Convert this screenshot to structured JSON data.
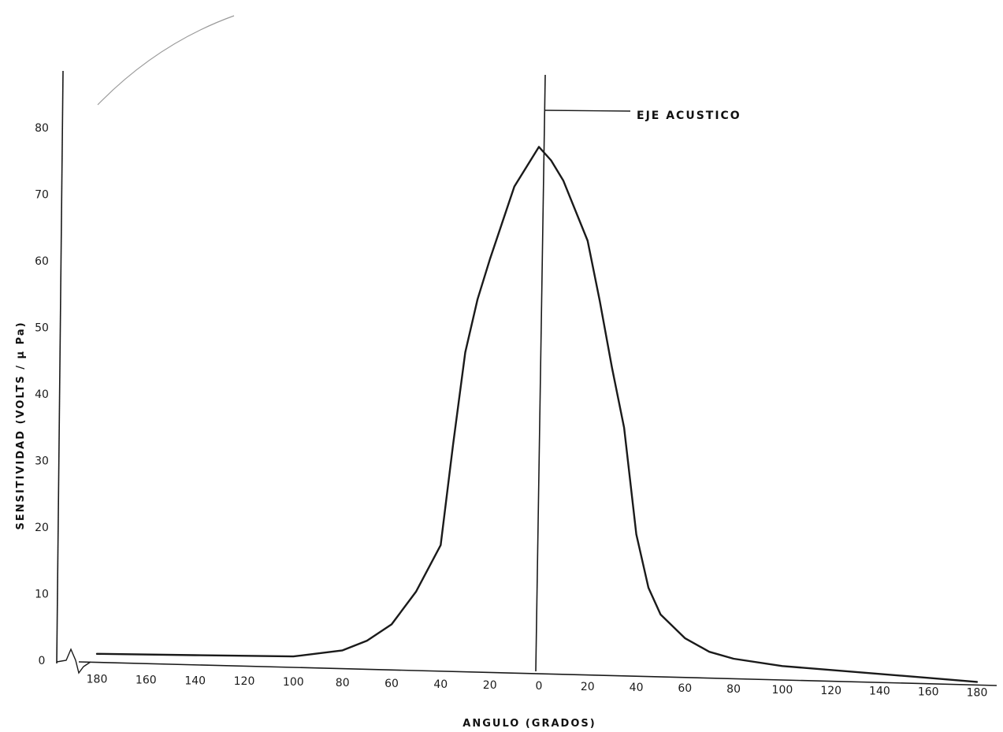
{
  "chart_data": {
    "type": "line",
    "xlabel": "ANGULO (GRADOS)",
    "ylabel": "SENSITIVIDAD (VOLTS / μ Pa)",
    "x_tick_labels": [
      "180",
      "160",
      "140",
      "120",
      "100",
      "80",
      "60",
      "40",
      "20",
      "0",
      "20",
      "40",
      "60",
      "80",
      "100",
      "120",
      "140",
      "160",
      "180"
    ],
    "y_ticks": [
      "0",
      "10",
      "20",
      "30",
      "40",
      "50",
      "60",
      "70",
      "80"
    ],
    "xlim": [
      -180,
      180
    ],
    "ylim": [
      0,
      85
    ],
    "grid": false,
    "annotation": "EJE ACUSTICO",
    "colors": {
      "line": "#1a1a1a"
    },
    "series": [
      {
        "x": [
          -180,
          -140,
          -100,
          -80,
          -70,
          -60,
          -50,
          -40,
          -35,
          -30,
          -25,
          -20,
          -10,
          0,
          5,
          10,
          20,
          25,
          30,
          35,
          40,
          45,
          50,
          60,
          70,
          80,
          100,
          120,
          140,
          160,
          180
        ],
        "y": [
          1,
          1,
          1,
          2,
          3.5,
          6,
          11,
          18,
          33,
          47,
          55,
          61,
          72,
          78,
          76,
          73,
          64,
          55,
          45,
          36,
          20,
          12,
          8,
          4.5,
          2.5,
          1.5,
          0.5,
          0,
          -0.5,
          -1,
          -1.5
        ]
      }
    ]
  }
}
